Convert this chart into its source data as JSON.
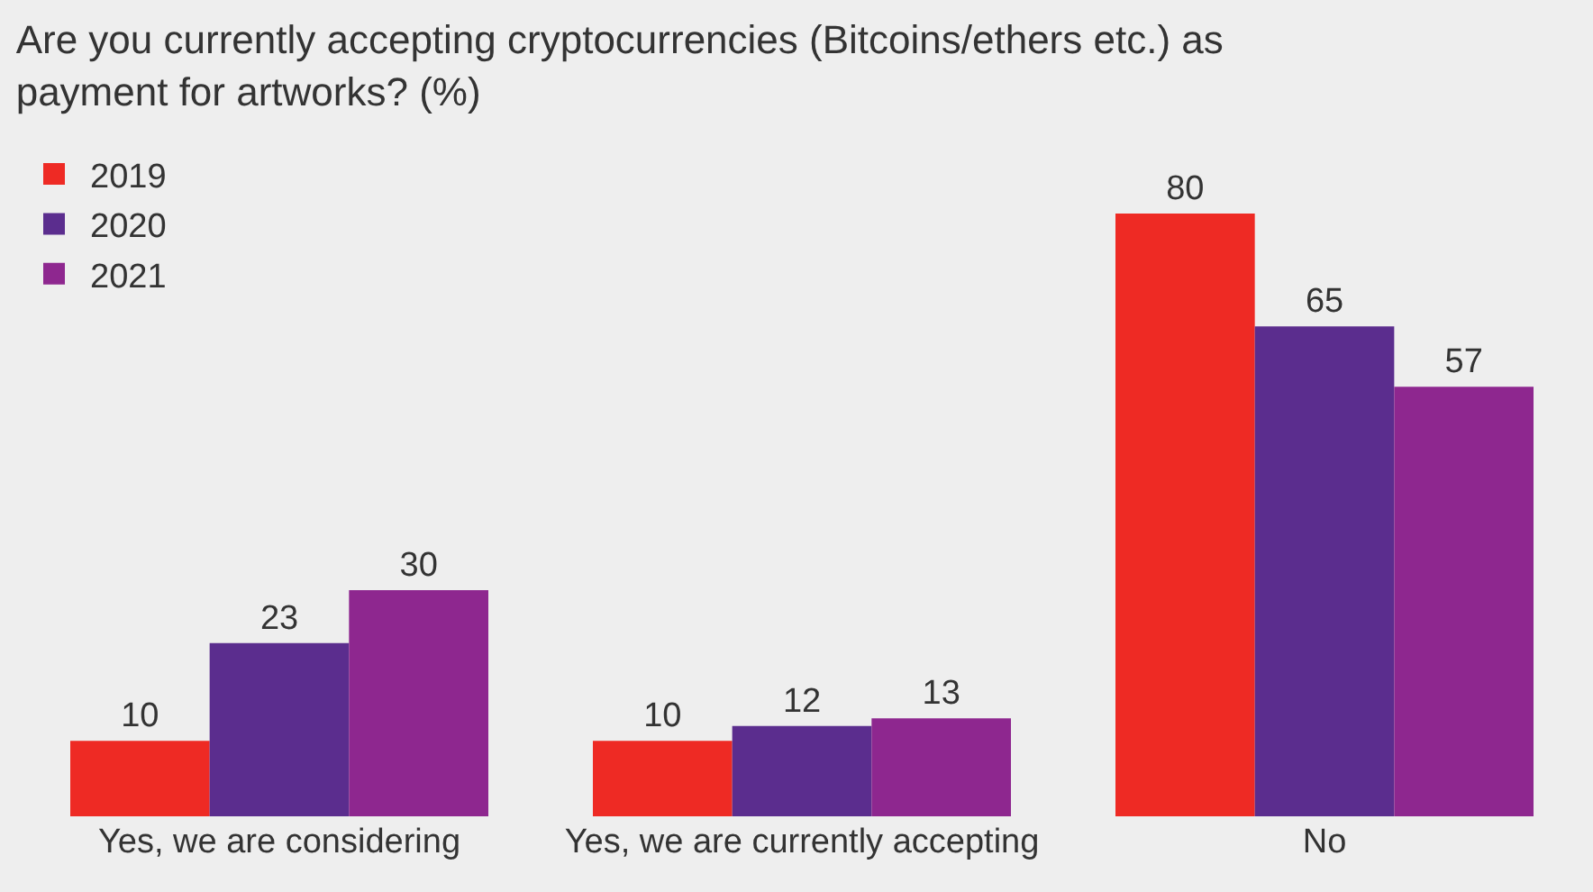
{
  "chart_data": {
    "type": "bar",
    "title": "Are you currently accepting cryptocurrencies (Bitcoins/ethers etc.) as payment for artworks? (%)",
    "categories": [
      "Yes, we are considering",
      "Yes, we are currently accepting",
      "No"
    ],
    "series": [
      {
        "name": "2019",
        "color": "#ee2a24",
        "values": [
          10,
          10,
          80
        ]
      },
      {
        "name": "2020",
        "color": "#5b2d8e",
        "values": [
          23,
          12,
          65
        ]
      },
      {
        "name": "2021",
        "color": "#8e278f",
        "values": [
          30,
          13,
          57
        ]
      }
    ],
    "data_labels": true,
    "legend": "top left",
    "grid": false
  }
}
